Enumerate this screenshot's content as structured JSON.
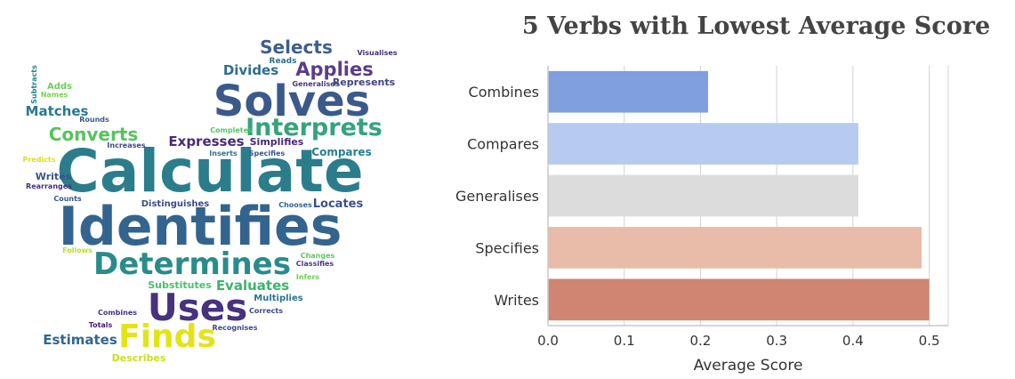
{
  "wordcloud": {
    "words": [
      {
        "text": "Calculate",
        "color": "#2c7d8c"
      },
      {
        "text": "Identifies",
        "color": "#33648d"
      },
      {
        "text": "Solves",
        "color": "#3b5a8a"
      },
      {
        "text": "Determines",
        "color": "#2a8c8a"
      },
      {
        "text": "Interprets",
        "color": "#35a37b"
      },
      {
        "text": "Uses",
        "color": "#46327e"
      },
      {
        "text": "Finds",
        "color": "#e3e418"
      },
      {
        "text": "Selects",
        "color": "#3d5f8f"
      },
      {
        "text": "Applies",
        "color": "#5a3d8c"
      },
      {
        "text": "Converts",
        "color": "#58c25e"
      },
      {
        "text": "Expresses",
        "color": "#482a78"
      },
      {
        "text": "Divides",
        "color": "#2e6e8e"
      },
      {
        "text": "Matches",
        "color": "#2a788e"
      },
      {
        "text": "Evaluates",
        "color": "#3cb56d"
      },
      {
        "text": "Locates",
        "color": "#3c4f8a"
      },
      {
        "text": "Estimates",
        "color": "#31688e"
      },
      {
        "text": "Substitutes",
        "color": "#4ac16d"
      },
      {
        "text": "Compares",
        "color": "#277f8e"
      },
      {
        "text": "Simplifies",
        "color": "#482878"
      },
      {
        "text": "Represents",
        "color": "#404387"
      },
      {
        "text": "Distinguishes",
        "color": "#3e4c8a"
      },
      {
        "text": "Multiplies",
        "color": "#2b748e"
      },
      {
        "text": "Writes",
        "color": "#3b528b"
      },
      {
        "text": "Describes",
        "color": "#c8e020"
      },
      {
        "text": "Reads",
        "color": "#2d708e"
      },
      {
        "text": "Adds",
        "color": "#6ccd5a"
      },
      {
        "text": "Generalises",
        "color": "#443983"
      },
      {
        "text": "Visualises",
        "color": "#46307e"
      },
      {
        "text": "Completes",
        "color": "#54c568"
      },
      {
        "text": "Specifies",
        "color": "#3a548c"
      },
      {
        "text": "Inserts",
        "color": "#2c728e"
      },
      {
        "text": "Increases",
        "color": "#3f4889"
      },
      {
        "text": "Rounds",
        "color": "#3b5a8a"
      },
      {
        "text": "Subtracts",
        "color": "#25848e"
      },
      {
        "text": "Names",
        "color": "#7ad151"
      },
      {
        "text": "Predicts",
        "color": "#d8e219"
      },
      {
        "text": "Rearranges",
        "color": "#472f7d"
      },
      {
        "text": "Counts",
        "color": "#3a548c"
      },
      {
        "text": "Follows",
        "color": "#b5de2b"
      },
      {
        "text": "Chooses",
        "color": "#33638d"
      },
      {
        "text": "Changes",
        "color": "#5ec962"
      },
      {
        "text": "Classifies",
        "color": "#443a83"
      },
      {
        "text": "Infers",
        "color": "#6ece58"
      },
      {
        "text": "Corrects",
        "color": "#3e4989"
      },
      {
        "text": "Combines",
        "color": "#463480"
      },
      {
        "text": "Totals",
        "color": "#481f70"
      },
      {
        "text": "Recognises",
        "color": "#3e4c8a"
      }
    ]
  },
  "chart_data": {
    "type": "bar",
    "orientation": "horizontal",
    "title": "5 Verbs with Lowest Average Score",
    "categories": [
      "Combines",
      "Compares",
      "Generalises",
      "Specifies",
      "Writes"
    ],
    "values": [
      0.21,
      0.407,
      0.407,
      0.49,
      0.5
    ],
    "colors": [
      "#7f9fde",
      "#b6cbef",
      "#dcdcdc",
      "#e8bca8",
      "#cf8570"
    ],
    "xlabel": "Average Score",
    "ylabel": "",
    "xlim": [
      0,
      0.525
    ],
    "xticks": [
      "0.0",
      "0.1",
      "0.2",
      "0.3",
      "0.4",
      "0.5"
    ],
    "grid": "vertical"
  }
}
